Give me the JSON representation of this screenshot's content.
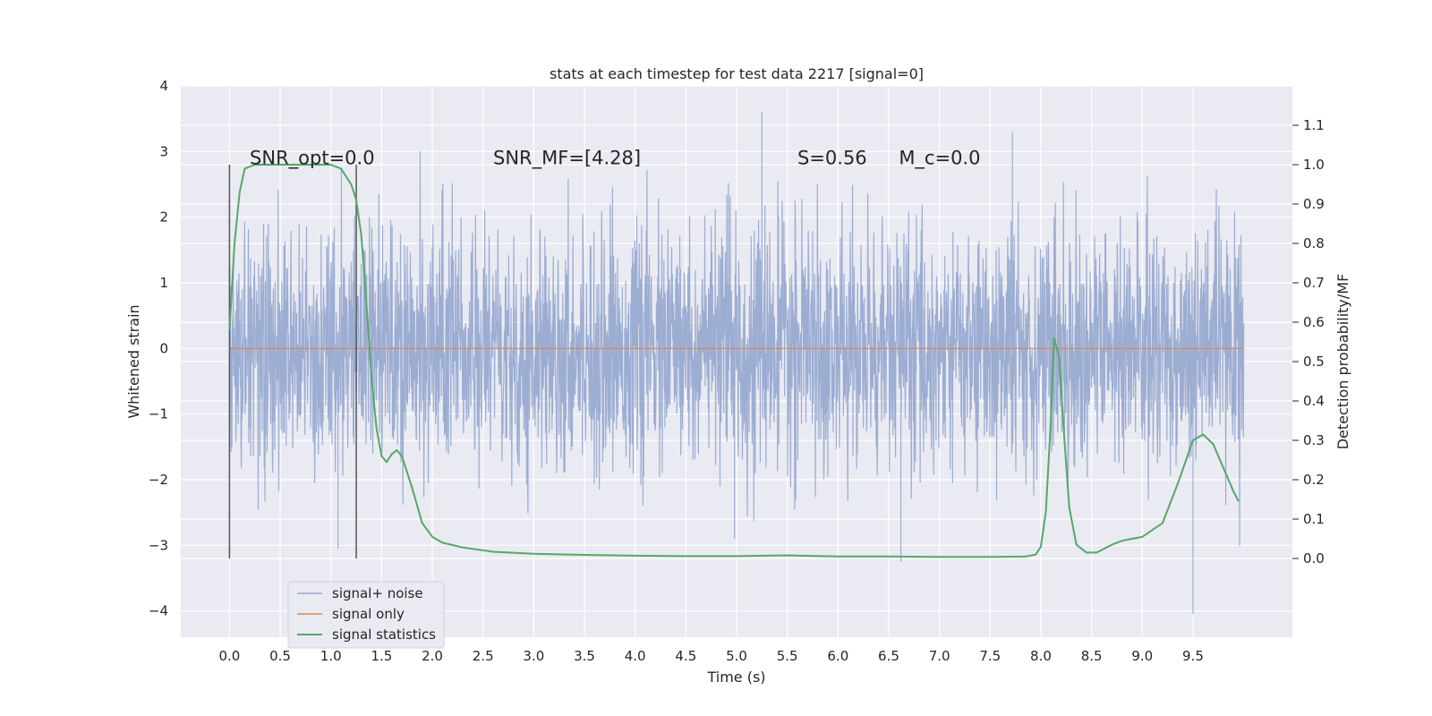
{
  "chart_data": {
    "type": "line",
    "title": "stats at each timestep for test data 2217 [signal=0]",
    "xlabel": "Time (s)",
    "ylabel_left": "Whitened strain",
    "ylabel_right": "Detection probability/MF",
    "xlim": [
      -0.48,
      10.48
    ],
    "ylim_left": [
      -4.4,
      4.0
    ],
    "ylim_right": [
      -0.2,
      1.2
    ],
    "x_ticks": [
      "0.0",
      "0.5",
      "1.0",
      "1.5",
      "2.0",
      "2.5",
      "3.0",
      "3.5",
      "4.0",
      "4.5",
      "5.0",
      "5.5",
      "6.0",
      "6.5",
      "7.0",
      "7.5",
      "8.0",
      "8.5",
      "9.0",
      "9.5"
    ],
    "y_left_ticks": [
      "4",
      "3",
      "2",
      "1",
      "0",
      "−1",
      "−2",
      "−3",
      "−4"
    ],
    "y_right_ticks": [
      "0.0",
      "0.1",
      "0.2",
      "0.3",
      "0.4",
      "0.5",
      "0.6",
      "0.7",
      "0.8",
      "0.9",
      "1.0",
      "1.1"
    ],
    "grid": true,
    "legend_position": "lower-left",
    "colors": {
      "background": "#eaeaf2",
      "noise": "#98aad0",
      "signal": "#dd8452",
      "stats": "#55a868",
      "marker": "#555555",
      "grid": "#ffffff"
    },
    "annotations": [
      {
        "text": "SNR_opt=0.0",
        "x": 0.2,
        "y": 2.9
      },
      {
        "text": "SNR_MF=[4.28]",
        "x": 2.6,
        "y": 2.9
      },
      {
        "text": "S=0.56",
        "x": 5.6,
        "y": 2.9
      },
      {
        "text": "M_c=0.0",
        "x": 6.6,
        "y": 2.9
      }
    ],
    "markers_x": [
      0.0,
      1.25
    ],
    "series": [
      {
        "name": "signal+ noise",
        "axis": "left",
        "x_range": [
          0.0,
          10.0
        ],
        "approx_std": 0.9,
        "notable_peaks": [
          {
            "x": 5.25,
            "y": 3.6
          },
          {
            "x": 7.72,
            "y": 3.3
          },
          {
            "x": 9.5,
            "y": -4.05
          },
          {
            "x": 6.62,
            "y": -3.25
          },
          {
            "x": 1.07,
            "y": -3.05
          },
          {
            "x": 4.98,
            "y": -2.9
          }
        ]
      },
      {
        "name": "signal only",
        "axis": "left",
        "x": [
          0.0,
          10.0
        ],
        "y": [
          0.0,
          0.0
        ]
      },
      {
        "name": "signal statistics",
        "axis": "right",
        "x": [
          0.0,
          0.05,
          0.1,
          0.15,
          0.25,
          0.5,
          0.75,
          1.0,
          1.1,
          1.2,
          1.25,
          1.3,
          1.35,
          1.4,
          1.45,
          1.5,
          1.55,
          1.6,
          1.65,
          1.7,
          1.75,
          1.8,
          1.9,
          2.0,
          2.1,
          2.3,
          2.6,
          3.0,
          3.5,
          4.0,
          4.5,
          5.0,
          5.5,
          6.0,
          6.5,
          7.0,
          7.5,
          7.85,
          7.95,
          8.0,
          8.05,
          8.1,
          8.13,
          8.18,
          8.23,
          8.28,
          8.35,
          8.45,
          8.55,
          8.7,
          8.8,
          9.0,
          9.2,
          9.35,
          9.5,
          9.6,
          9.7,
          9.8,
          9.9,
          9.95
        ],
        "y": [
          0.58,
          0.8,
          0.93,
          0.99,
          1.0,
          1.0,
          1.0,
          1.0,
          0.99,
          0.95,
          0.91,
          0.82,
          0.65,
          0.46,
          0.33,
          0.26,
          0.245,
          0.265,
          0.275,
          0.26,
          0.22,
          0.18,
          0.09,
          0.055,
          0.04,
          0.028,
          0.017,
          0.012,
          0.009,
          0.007,
          0.006,
          0.006,
          0.008,
          0.005,
          0.005,
          0.004,
          0.004,
          0.005,
          0.01,
          0.03,
          0.12,
          0.36,
          0.56,
          0.51,
          0.31,
          0.13,
          0.035,
          0.015,
          0.015,
          0.035,
          0.045,
          0.055,
          0.09,
          0.19,
          0.3,
          0.315,
          0.29,
          0.23,
          0.17,
          0.145
        ]
      }
    ]
  }
}
